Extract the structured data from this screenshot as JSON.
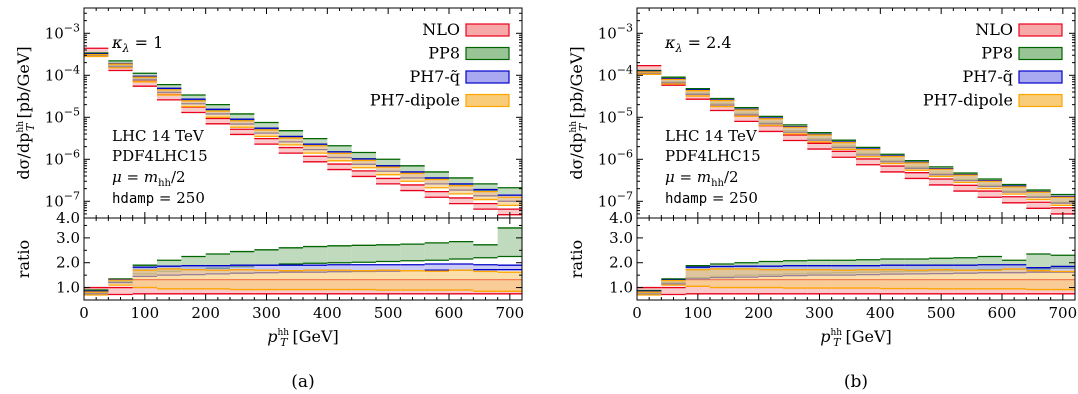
{
  "colors": {
    "NLO": {
      "fill": "#f7a9a9",
      "edge": "#e8001c"
    },
    "PP8": {
      "fill": "#99c496",
      "edge": "#006400"
    },
    "PH7-qtilde": {
      "fill": "#a9a9f2",
      "edge": "#0000c8"
    },
    "PH7-dipole": {
      "fill": "#f8cc78",
      "edge": "#ffa500"
    }
  },
  "legend": [
    "NLO",
    "PP8",
    "PH7-q̃",
    "PH7-dipole"
  ],
  "ticks": {
    "x": [
      "0",
      "100",
      "200",
      "300",
      "400",
      "500",
      "600",
      "700"
    ],
    "x_values": [
      0,
      100,
      200,
      300,
      400,
      500,
      600,
      700
    ],
    "main_y": [
      "4.0",
      "10",
      "10",
      "10",
      "10",
      "10"
    ],
    "main_y_exp": [
      "",
      "−7",
      "−6",
      "−5",
      "−4",
      "−3"
    ],
    "main_y_values": [
      4e-08,
      1e-07,
      1e-06,
      1e-05,
      0.0001,
      0.001
    ],
    "ratio_y": [
      "1.0",
      "2.0",
      "3.0"
    ],
    "ratio_y_values": [
      1,
      2,
      3
    ]
  },
  "labels": {
    "ylabel_main_pre": "dσ/dp",
    "ylabel_main_sup": "hh",
    "ylabel_main_sub": "T",
    "ylabel_main_post": " [pb/GeV]",
    "ylabel_ratio": "ratio",
    "xlabel_pre": "p",
    "xlabel_sup": "hh",
    "xlabel_sub": "T",
    "xlabel_post": " [GeV]",
    "info1": "LHC 14 TeV",
    "info2": "PDF4LHC15",
    "info3_pre": "μ = m",
    "info3_sub": "hh",
    "info3_post": "/2",
    "info4_code": "hdamp",
    "info4_rest": " = 250"
  },
  "chart_data": [
    {
      "type": "histogram",
      "caption": "(a)",
      "kappa_label": "κ",
      "kappa_sub": "λ",
      "kappa_value": " = 1",
      "xlim": [
        0,
        720
      ],
      "ylim": [
        4e-08,
        0.004
      ],
      "yscale": "log",
      "ratio_ylim": [
        0.5,
        3.8
      ],
      "bin_edges": [
        0,
        40,
        80,
        120,
        160,
        200,
        240,
        280,
        320,
        360,
        400,
        440,
        480,
        520,
        560,
        600,
        640,
        680,
        720
      ],
      "series": [
        {
          "name": "NLO",
          "lo": [
            0.00032,
            0.00013,
            5.5e-05,
            2.6e-05,
            1.3e-05,
            7e-06,
            3.9e-06,
            2.3e-06,
            1.4e-06,
            8.7e-07,
            5.7e-07,
            3.9e-07,
            2.6e-07,
            1.8e-07,
            1.25e-07,
            8.8e-08,
            6.5e-08,
            4.8e-08
          ],
          "hi": [
            0.00044,
            0.00018,
            7.4e-05,
            3.5e-05,
            1.75e-05,
            9.4e-06,
            5.2e-06,
            3.1e-06,
            1.9e-06,
            1.18e-06,
            7.7e-07,
            5.3e-07,
            3.5e-07,
            2.45e-07,
            1.7e-07,
            1.2e-07,
            8.8e-08,
            6.5e-08
          ]
        },
        {
          "name": "PP8",
          "lo": [
            0.0003,
            0.00017,
            8.6e-05,
            4.5e-05,
            2.5e-05,
            1.45e-05,
            8.6e-06,
            5.3e-06,
            3.4e-06,
            2.2e-06,
            1.5e-06,
            1.02e-06,
            7e-07,
            4.9e-07,
            3.5e-07,
            2.5e-07,
            1.8e-07,
            1.4e-07
          ],
          "hi": [
            0.00034,
            0.00022,
            0.000112,
            6e-05,
            3.4e-05,
            2e-05,
            1.2e-05,
            7.5e-06,
            4.8e-06,
            3.1e-06,
            2.1e-06,
            1.45e-06,
            1e-06,
            7e-07,
            5e-07,
            3.6e-07,
            2.6e-07,
            2.1e-07
          ]
        },
        {
          "name": "PH7-q̃",
          "lo": [
            0.00029,
            0.00016,
            7.8e-05,
            3.9e-05,
            2.1e-05,
            1.2e-05,
            6.9e-06,
            4.2e-06,
            2.6e-06,
            1.7e-06,
            1.1e-06,
            7.6e-07,
            5.2e-07,
            3.6e-07,
            2.6e-07,
            1.85e-07,
            1.35e-07,
            1e-07
          ],
          "hi": [
            0.00032,
            0.00019,
            9.5e-05,
            4.9e-05,
            2.7e-05,
            1.55e-05,
            9e-06,
            5.5e-06,
            3.5e-06,
            2.3e-06,
            1.5e-06,
            1.02e-06,
            7e-07,
            5e-07,
            3.6e-07,
            2.6e-07,
            1.9e-07,
            1.4e-07
          ]
        },
        {
          "name": "PH7-dipole",
          "lo": [
            0.00028,
            0.00015,
            7e-05,
            3.4e-05,
            1.8e-05,
            1e-05,
            5.8e-06,
            3.5e-06,
            2.2e-06,
            1.4e-06,
            9.2e-07,
            6.3e-07,
            4.3e-07,
            3e-07,
            2.1e-07,
            1.5e-07,
            1.1e-07,
            8e-08
          ],
          "hi": [
            0.00031,
            0.000185,
            9e-05,
            4.5e-05,
            2.45e-05,
            1.4e-05,
            8.2e-06,
            5e-06,
            3.2e-06,
            2.1e-06,
            1.38e-06,
            9.4e-07,
            6.5e-07,
            4.6e-07,
            3.3e-07,
            2.35e-07,
            1.7e-07,
            1.25e-07
          ]
        }
      ],
      "ratio_series": [
        {
          "name": "NLO",
          "lo": [
            0.72,
            0.72,
            0.75,
            0.75,
            0.75,
            0.75,
            0.75,
            0.75,
            0.75,
            0.75,
            0.75,
            0.75,
            0.75,
            0.75,
            0.75,
            0.75,
            0.75,
            0.75
          ],
          "hi": [
            1.0,
            1.0,
            1.32,
            1.32,
            1.32,
            1.32,
            1.32,
            1.32,
            1.32,
            1.32,
            1.32,
            1.32,
            1.32,
            1.32,
            1.32,
            1.32,
            1.32,
            1.32
          ]
        },
        {
          "name": "PP8",
          "lo": [
            0.8,
            1.25,
            1.55,
            1.65,
            1.72,
            1.78,
            1.84,
            1.9,
            1.95,
            1.98,
            2.0,
            2.02,
            2.05,
            2.08,
            2.1,
            2.15,
            2.2,
            2.25
          ],
          "hi": [
            0.9,
            1.35,
            1.9,
            2.1,
            2.25,
            2.35,
            2.45,
            2.52,
            2.6,
            2.65,
            2.68,
            2.7,
            2.72,
            2.75,
            2.8,
            2.85,
            2.72,
            3.4
          ]
        },
        {
          "name": "PH7-q̃",
          "lo": [
            0.75,
            1.2,
            1.45,
            1.5,
            1.52,
            1.55,
            1.58,
            1.6,
            1.62,
            1.62,
            1.64,
            1.65,
            1.66,
            1.68,
            1.7,
            1.7,
            1.72,
            1.72
          ],
          "hi": [
            0.85,
            1.32,
            1.82,
            1.86,
            1.88,
            1.88,
            1.9,
            1.9,
            1.9,
            1.9,
            1.92,
            1.92,
            1.92,
            1.92,
            1.95,
            1.95,
            1.92,
            1.9
          ]
        },
        {
          "name": "PH7-dipole",
          "lo": [
            0.7,
            1.1,
            1.0,
            0.95,
            0.95,
            0.95,
            0.92,
            0.92,
            0.92,
            0.92,
            0.92,
            0.92,
            0.9,
            0.9,
            0.9,
            0.9,
            0.85,
            0.85
          ],
          "hi": [
            0.82,
            1.3,
            1.7,
            1.75,
            1.72,
            1.7,
            1.72,
            1.7,
            1.68,
            1.7,
            1.7,
            1.68,
            1.7,
            1.68,
            1.66,
            1.7,
            1.65,
            1.62
          ]
        }
      ]
    },
    {
      "type": "histogram",
      "caption": "(b)",
      "kappa_label": "κ",
      "kappa_sub": "λ",
      "kappa_value": " = 2.4",
      "xlim": [
        0,
        720
      ],
      "ylim": [
        4e-08,
        0.004
      ],
      "yscale": "log",
      "ratio_ylim": [
        0.5,
        3.8
      ],
      "bin_edges": [
        0,
        40,
        80,
        120,
        160,
        200,
        240,
        280,
        320,
        360,
        400,
        440,
        480,
        520,
        560,
        600,
        640,
        680,
        720
      ],
      "series": [
        {
          "name": "NLO",
          "lo": [
            0.00012,
            5.8e-05,
            2.7e-05,
            1.45e-05,
            8e-06,
            4.6e-06,
            2.8e-06,
            1.75e-06,
            1.12e-06,
            7.4e-07,
            5e-07,
            3.5e-07,
            2.45e-07,
            1.75e-07,
            1.25e-07,
            9.2e-08,
            6.8e-08,
            5e-08
          ],
          "hi": [
            0.00017,
            8e-05,
            3.7e-05,
            2e-05,
            1.1e-05,
            6.3e-06,
            3.8e-06,
            2.4e-06,
            1.55e-06,
            1.02e-06,
            6.9e-07,
            4.8e-07,
            3.4e-07,
            2.4e-07,
            1.75e-07,
            1.28e-07,
            9.5e-08,
            7e-08
          ]
        },
        {
          "name": "PP8",
          "lo": [
            0.000115,
            7e-05,
            3.7e-05,
            2.1e-05,
            1.25e-05,
            7.6e-06,
            4.8e-06,
            3.1e-06,
            2.05e-06,
            1.38e-06,
            9.4e-07,
            6.6e-07,
            4.6e-07,
            3.3e-07,
            2.4e-07,
            1.75e-07,
            1.3e-07,
            9.5e-08
          ],
          "hi": [
            0.00013,
            9e-05,
            4.8e-05,
            2.8e-05,
            1.7e-05,
            1.05e-05,
            6.6e-06,
            4.3e-06,
            2.85e-06,
            1.92e-06,
            1.32e-06,
            9.3e-07,
            6.6e-07,
            4.7e-07,
            3.4e-07,
            2.5e-07,
            1.85e-07,
            1.45e-07
          ]
        },
        {
          "name": "PH7-q̃",
          "lo": [
            0.00011,
            6.6e-05,
            3.5e-05,
            1.95e-05,
            1.15e-05,
            7e-06,
            4.4e-06,
            2.85e-06,
            1.9e-06,
            1.27e-06,
            8.7e-07,
            6.1e-07,
            4.3e-07,
            3.1e-07,
            2.25e-07,
            1.65e-07,
            1.25e-07,
            9e-08
          ],
          "hi": [
            0.000125,
            8.3e-05,
            4.5e-05,
            2.6e-05,
            1.55e-05,
            9.6e-06,
            6e-06,
            3.9e-06,
            2.6e-06,
            1.76e-06,
            1.2e-06,
            8.5e-07,
            6e-07,
            4.3e-07,
            3.1e-07,
            2.3e-07,
            1.7e-07,
            1.3e-07
          ]
        },
        {
          "name": "PH7-dipole",
          "lo": [
            0.000105,
            6.2e-05,
            3.2e-05,
            1.8e-05,
            1.05e-05,
            6.4e-06,
            4e-06,
            2.6e-06,
            1.72e-06,
            1.15e-06,
            7.9e-07,
            5.5e-07,
            3.9e-07,
            2.8e-07,
            2e-07,
            1.48e-07,
            1.1e-07,
            8e-08
          ],
          "hi": [
            0.00012,
            8e-05,
            4.3e-05,
            2.5e-05,
            1.5e-05,
            9.2e-06,
            5.8e-06,
            3.8e-06,
            2.5e-06,
            1.7e-06,
            1.16e-06,
            8.2e-07,
            5.8e-07,
            4.2e-07,
            3e-07,
            2.2e-07,
            1.65e-07,
            1.25e-07
          ]
        }
      ],
      "ratio_series": [
        {
          "name": "NLO",
          "lo": [
            0.72,
            0.72,
            0.75,
            0.75,
            0.75,
            0.75,
            0.75,
            0.75,
            0.75,
            0.75,
            0.75,
            0.75,
            0.75,
            0.75,
            0.75,
            0.75,
            0.75,
            0.75
          ],
          "hi": [
            1.0,
            1.0,
            1.32,
            1.32,
            1.32,
            1.32,
            1.32,
            1.32,
            1.32,
            1.32,
            1.32,
            1.32,
            1.32,
            1.32,
            1.32,
            1.32,
            1.32,
            1.32
          ]
        },
        {
          "name": "PP8",
          "lo": [
            0.78,
            1.2,
            1.4,
            1.45,
            1.5,
            1.52,
            1.55,
            1.58,
            1.6,
            1.62,
            1.64,
            1.66,
            1.68,
            1.7,
            1.72,
            1.74,
            1.75,
            1.78
          ],
          "hi": [
            0.88,
            1.35,
            1.88,
            1.95,
            2.0,
            2.05,
            2.08,
            2.1,
            2.1,
            2.12,
            2.15,
            2.15,
            2.18,
            2.2,
            2.25,
            2.1,
            2.35,
            2.3
          ]
        },
        {
          "name": "PH7-q̃",
          "lo": [
            0.74,
            1.15,
            1.35,
            1.4,
            1.42,
            1.45,
            1.48,
            1.5,
            1.5,
            1.52,
            1.54,
            1.55,
            1.56,
            1.58,
            1.6,
            1.6,
            1.62,
            1.62
          ],
          "hi": [
            0.85,
            1.3,
            1.82,
            1.85,
            1.86,
            1.86,
            1.88,
            1.88,
            1.88,
            1.88,
            1.9,
            1.9,
            1.9,
            1.9,
            1.92,
            1.92,
            1.8,
            1.85
          ]
        },
        {
          "name": "PH7-dipole",
          "lo": [
            0.7,
            1.1,
            1.05,
            1.0,
            1.0,
            1.0,
            0.98,
            0.98,
            0.98,
            0.98,
            0.96,
            0.96,
            0.95,
            0.95,
            0.95,
            0.95,
            0.92,
            0.92
          ],
          "hi": [
            0.82,
            1.28,
            1.72,
            1.75,
            1.75,
            1.72,
            1.72,
            1.72,
            1.7,
            1.72,
            1.72,
            1.7,
            1.72,
            1.7,
            1.7,
            1.75,
            1.68,
            1.65
          ]
        }
      ]
    }
  ]
}
